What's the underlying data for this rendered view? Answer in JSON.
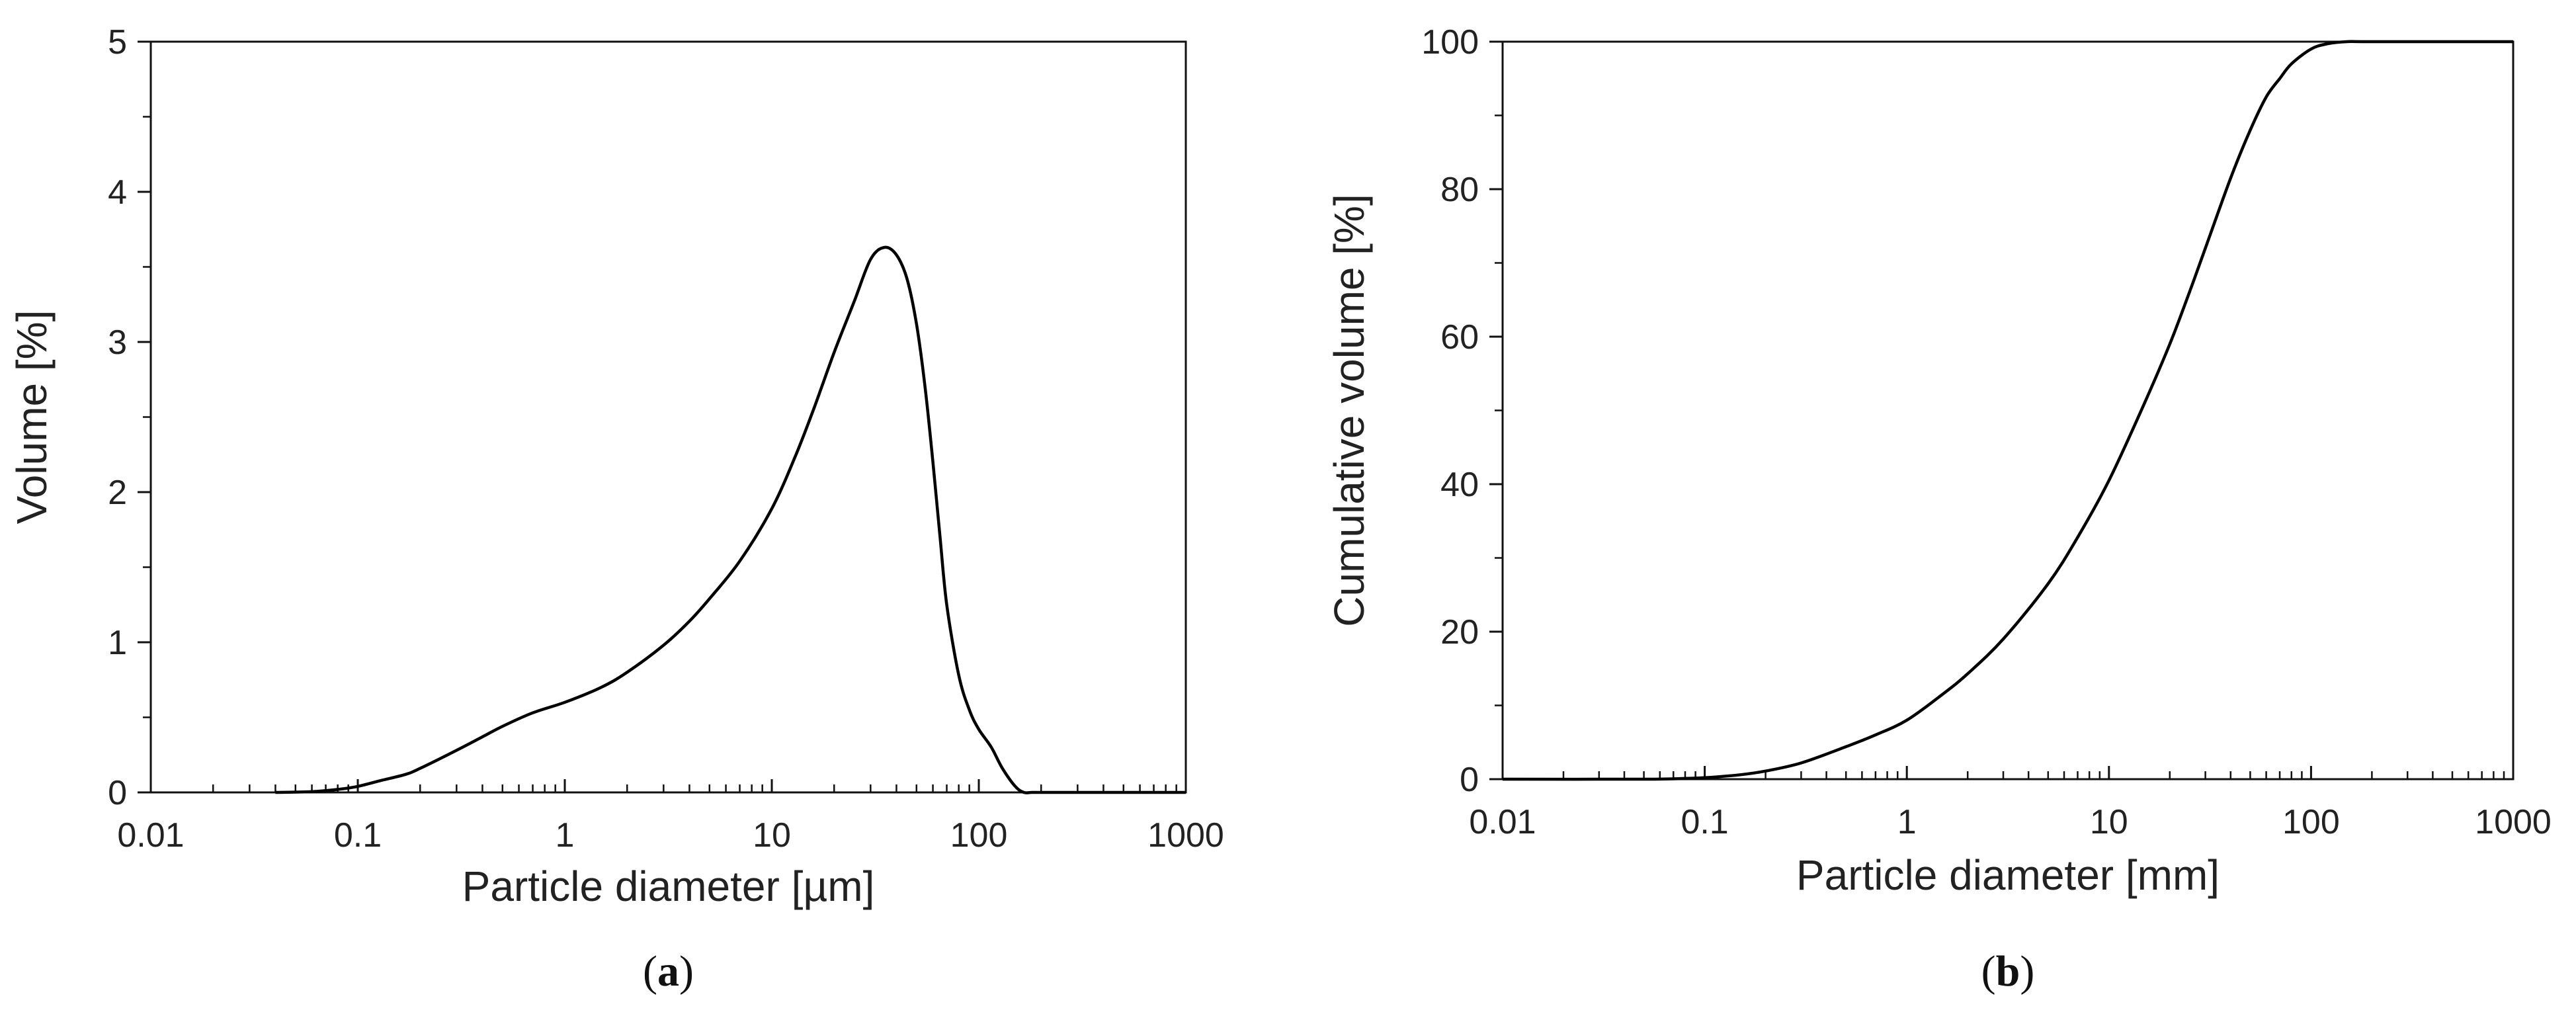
{
  "chart_data": [
    {
      "type": "line",
      "panel_label": "a",
      "xlabel": "Particle diameter [µm]",
      "ylabel": "Volume [%]",
      "xscale": "log",
      "xlim": [
        0.01,
        1000
      ],
      "ylim": [
        0,
        5
      ],
      "xticks": [
        "0.01",
        "0.1",
        "1",
        "10",
        "100",
        "1000"
      ],
      "yticks": [
        "0",
        "1",
        "2",
        "3",
        "4",
        "5"
      ],
      "grid": false,
      "line_color": "#000000",
      "x": [
        0.04,
        0.06,
        0.08,
        0.1,
        0.13,
        0.17,
        0.2,
        0.3,
        0.4,
        0.5,
        0.7,
        1,
        1.5,
        2,
        3,
        4,
        5,
        7,
        10,
        13,
        16,
        20,
        25,
        30,
        35,
        40,
        45,
        50,
        55,
        60,
        65,
        70,
        80,
        90,
        100,
        115,
        130,
        150,
        165,
        180,
        200,
        300,
        1000
      ],
      "y": [
        0,
        0.005,
        0.02,
        0.04,
        0.08,
        0.12,
        0.16,
        0.28,
        0.37,
        0.44,
        0.53,
        0.6,
        0.7,
        0.8,
        0.98,
        1.14,
        1.29,
        1.54,
        1.89,
        2.24,
        2.56,
        2.93,
        3.27,
        3.55,
        3.63,
        3.58,
        3.42,
        3.12,
        2.7,
        2.2,
        1.7,
        1.25,
        0.78,
        0.55,
        0.42,
        0.3,
        0.16,
        0.04,
        0.0,
        0,
        0,
        0,
        0
      ]
    },
    {
      "type": "line",
      "panel_label": "b",
      "xlabel": "Particle diameter [mm]",
      "ylabel": "Cumulative volume [%]",
      "xscale": "log",
      "xlim": [
        0.01,
        1000
      ],
      "ylim": [
        0,
        100
      ],
      "xticks": [
        "0.01",
        "0.1",
        "1",
        "10",
        "100",
        "1000"
      ],
      "yticks": [
        "0",
        "20",
        "40",
        "60",
        "80",
        "100"
      ],
      "grid": false,
      "line_color": "#000000",
      "x": [
        0.01,
        0.05,
        0.08,
        0.1,
        0.15,
        0.2,
        0.3,
        0.5,
        0.7,
        1,
        1.5,
        2,
        3,
        5,
        7,
        10,
        15,
        20,
        25,
        30,
        40,
        50,
        60,
        70,
        80,
        100,
        120,
        150,
        200,
        1000
      ],
      "y": [
        0,
        0,
        0.1,
        0.2,
        0.6,
        1.1,
        2.2,
        4.4,
        6.0,
        8.0,
        11.5,
        14.3,
        19.0,
        26.5,
        32.8,
        40.5,
        51.0,
        59.0,
        66.0,
        72.0,
        81.5,
        88.0,
        92.5,
        95.0,
        97.0,
        99.0,
        99.7,
        100,
        100,
        100
      ]
    }
  ]
}
